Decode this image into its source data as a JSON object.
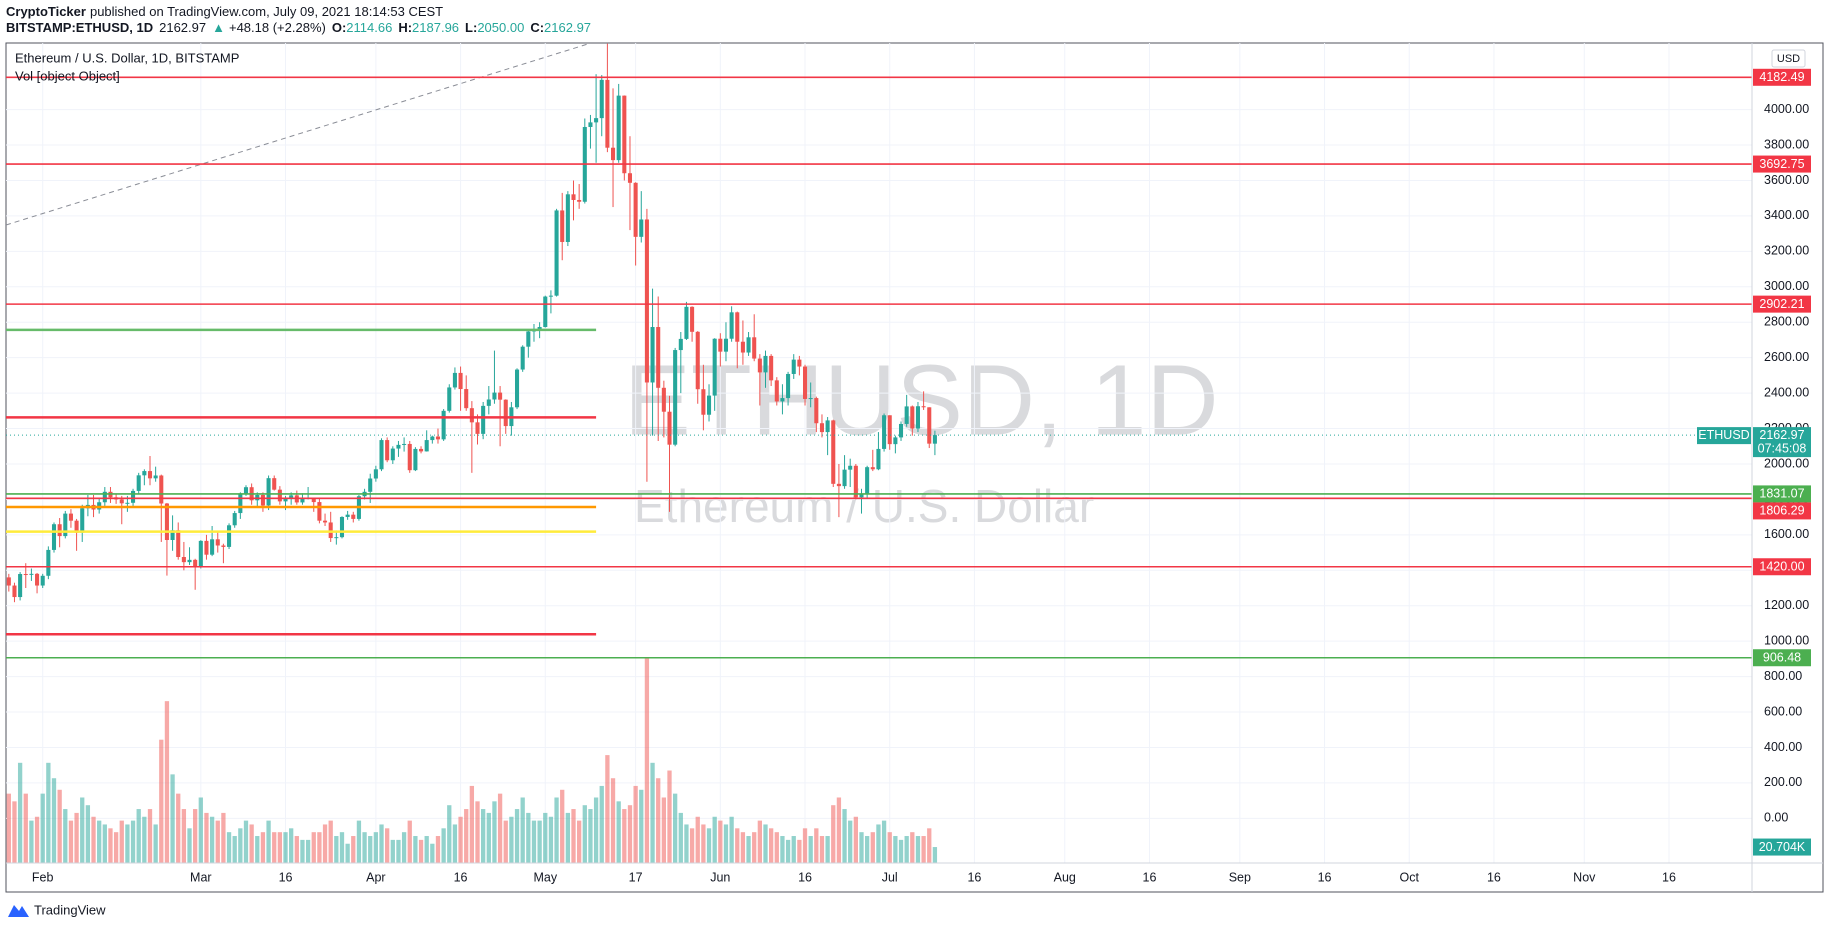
{
  "header": {
    "author": "CryptoTicker",
    "published": "published on TradingView.com, July 09, 2021 18:14:53 CEST",
    "symbol": "BITSTAMP:ETHUSD, 1D",
    "last": "2162.97",
    "arrow": "▲",
    "change": "+48.18 (+2.28%)",
    "o_label": "O:",
    "o": "2114.66",
    "h_label": "H:",
    "h": "2187.96",
    "l_label": "L:",
    "l": "2050.00",
    "c_label": "C:",
    "c": "2162.97"
  },
  "footer": {
    "brand": "TradingView"
  },
  "chart_data": {
    "type": "candlestick",
    "title": "Ethereum / U.S. Dollar, 1D, BITSTAMP",
    "indicator": "Vol [object Object]",
    "watermark": "ETHUSD, 1D",
    "watermark_subtitle": "Ethereum / U.S. Dollar",
    "currency": "USD",
    "symbol_label": "ETHUSD",
    "countdown": "07:45:08",
    "volume_last_label": "20.704K",
    "colors": {
      "up": "#26a69a",
      "down": "#ef5350"
    },
    "grid": true,
    "xlim": [
      -0.5,
      308.7
    ],
    "ylim": [
      -252,
      4376
    ],
    "volume_ylim": [
      0,
      266000
    ],
    "xticks": [
      {
        "value": 6,
        "label": "Feb"
      },
      {
        "value": 34,
        "label": "Mar"
      },
      {
        "value": 49,
        "label": "16"
      },
      {
        "value": 65,
        "label": "Apr"
      },
      {
        "value": 80,
        "label": "16"
      },
      {
        "value": 95,
        "label": "May"
      },
      {
        "value": 111,
        "label": "17"
      },
      {
        "value": 126,
        "label": "Jun"
      },
      {
        "value": 141,
        "label": "16"
      },
      {
        "value": 156,
        "label": "Jul"
      },
      {
        "value": 171,
        "label": "16"
      },
      {
        "value": 187,
        "label": "Aug"
      },
      {
        "value": 202,
        "label": "16"
      },
      {
        "value": 218,
        "label": "Sep"
      },
      {
        "value": 233,
        "label": "16"
      },
      {
        "value": 248,
        "label": "Oct"
      },
      {
        "value": 263,
        "label": "16"
      },
      {
        "value": 279,
        "label": "Nov"
      },
      {
        "value": 294,
        "label": "16"
      }
    ],
    "yticks": [
      {
        "value": 0,
        "label": "0.00"
      },
      {
        "value": 200,
        "label": "200.00"
      },
      {
        "value": 400,
        "label": "400.00"
      },
      {
        "value": 600,
        "label": "600.00"
      },
      {
        "value": 800,
        "label": "800.00"
      },
      {
        "value": 1000,
        "label": "1000.00"
      },
      {
        "value": 1200,
        "label": "1200.00"
      },
      {
        "value": 1400,
        "label": "1400.00"
      },
      {
        "value": 1600,
        "label": "1600.00"
      },
      {
        "value": 1800,
        "label": "1800.00"
      },
      {
        "value": 2000,
        "label": "2000.00"
      },
      {
        "value": 2200,
        "label": "2200.00"
      },
      {
        "value": 2400,
        "label": "2400.00"
      },
      {
        "value": 2600,
        "label": "2600.00"
      },
      {
        "value": 2800,
        "label": "2800.00"
      },
      {
        "value": 3000,
        "label": "3000.00"
      },
      {
        "value": 3200,
        "label": "3200.00"
      },
      {
        "value": 3400,
        "label": "3400.00"
      },
      {
        "value": 3600,
        "label": "3600.00"
      },
      {
        "value": 3800,
        "label": "3800.00"
      },
      {
        "value": 4000,
        "label": "4000.00"
      }
    ],
    "open": [
      1360,
      1314,
      1249,
      1379,
      1378,
      1380,
      1314,
      1369,
      1515,
      1660,
      1593,
      1720,
      1680,
      1612,
      1750,
      1769,
      1743,
      1784,
      1843,
      1812,
      1800,
      1778,
      1781,
      1848,
      1936,
      1960,
      1919,
      1935,
      1777,
      1571,
      1626,
      1475,
      1446,
      1459,
      1416,
      1566,
      1488,
      1575,
      1540,
      1532,
      1654,
      1723,
      1834,
      1869,
      1795,
      1825,
      1766,
      1920,
      1855,
      1789,
      1805,
      1823,
      1783,
      1808,
      1809,
      1785,
      1680,
      1670,
      1582,
      1587,
      1701,
      1714,
      1690,
      1818,
      1843,
      1918,
      1970,
      2135,
      2021,
      2087,
      2108,
      2113,
      1965,
      2085,
      2071,
      2135,
      2155,
      2139,
      2300,
      2432,
      2514,
      2423,
      2315,
      2235,
      2170,
      2328,
      2364,
      2403,
      2363,
      2214,
      2320,
      2533,
      2662,
      2748,
      2757,
      2773,
      2945,
      2950,
      3431,
      3253,
      3522,
      3490,
      3480,
      3902,
      3928,
      3952,
      4168,
      3785,
      3715,
      4079,
      3641,
      3587,
      3282,
      3380,
      2460,
      2773,
      2430,
      2295,
      2109,
      2643,
      2706,
      2887,
      2746,
      2422,
      2278,
      2386,
      2707,
      2634,
      2707,
      2856,
      2690,
      2629,
      2715,
      2595,
      2517,
      2610,
      2472,
      2353,
      2372,
      2508,
      2589,
      2550,
      2367,
      2372,
      2230,
      2180,
      2246,
      1888,
      1875,
      1968,
      1990,
      1812,
      1830,
      1982,
      1970,
      2085,
      2275,
      2112,
      2150,
      2226,
      2325,
      2200,
      2326,
      2320,
      2114.66
    ],
    "high": [
      1380,
      1330,
      1390,
      1440,
      1410,
      1385,
      1380,
      1535,
      1670,
      1695,
      1735,
      1745,
      1690,
      1770,
      1825,
      1825,
      1805,
      1870,
      1870,
      1830,
      1820,
      1820,
      1860,
      1950,
      1970,
      2045,
      1985,
      1940,
      1780,
      1710,
      1670,
      1560,
      1530,
      1465,
      1570,
      1600,
      1650,
      1620,
      1550,
      1665,
      1735,
      1840,
      1880,
      1890,
      1840,
      1840,
      1935,
      1935,
      1875,
      1820,
      1840,
      1850,
      1835,
      1870,
      1810,
      1810,
      1720,
      1730,
      1625,
      1705,
      1735,
      1730,
      1825,
      1860,
      1945,
      1990,
      2145,
      2150,
      2100,
      2130,
      2150,
      2130,
      2095,
      2100,
      2190,
      2160,
      2200,
      2310,
      2450,
      2545,
      2550,
      2500,
      2355,
      2280,
      2350,
      2440,
      2640,
      2440,
      2365,
      2350,
      2540,
      2670,
      2760,
      2790,
      2800,
      2950,
      2980,
      3440,
      3530,
      3540,
      3600,
      3580,
      3950,
      3970,
      4200,
      4195,
      4372,
      4120,
      4145,
      4080,
      3850,
      3590,
      3540,
      3440,
      2990,
      2945,
      2470,
      2385,
      2655,
      2745,
      2915,
      2890,
      2750,
      2560,
      2450,
      2710,
      2738,
      2800,
      2890,
      2860,
      2810,
      2745,
      2845,
      2620,
      2640,
      2620,
      2490,
      2450,
      2520,
      2620,
      2610,
      2560,
      2460,
      2380,
      2280,
      2265,
      2250,
      2000,
      2050,
      2030,
      2000,
      1860,
      1990,
      2080,
      2180,
      2285,
      2275,
      2160,
      2240,
      2390,
      2330,
      2350,
      2410,
      2320,
      2187.96
    ],
    "low": [
      1280,
      1220,
      1230,
      1300,
      1340,
      1270,
      1300,
      1350,
      1500,
      1530,
      1580,
      1640,
      1510,
      1560,
      1705,
      1700,
      1720,
      1760,
      1780,
      1775,
      1660,
      1730,
      1760,
      1830,
      1880,
      1880,
      1900,
      1560,
      1370,
      1510,
      1460,
      1400,
      1430,
      1290,
      1410,
      1460,
      1480,
      1500,
      1440,
      1520,
      1640,
      1690,
      1820,
      1770,
      1760,
      1730,
      1740,
      1850,
      1770,
      1740,
      1770,
      1770,
      1770,
      1800,
      1730,
      1665,
      1650,
      1560,
      1545,
      1580,
      1685,
      1670,
      1680,
      1800,
      1780,
      1900,
      1960,
      2010,
      2000,
      2040,
      2070,
      1950,
      1960,
      2060,
      2070,
      2115,
      2115,
      2130,
      2290,
      2420,
      2300,
      2300,
      1950,
      2110,
      2140,
      2280,
      2340,
      2100,
      2170,
      2160,
      2310,
      2520,
      2600,
      2690,
      2710,
      2770,
      2850,
      2945,
      3150,
      3230,
      3375,
      3440,
      3470,
      3780,
      3700,
      3850,
      3760,
      3450,
      3700,
      3600,
      3320,
      3120,
      3250,
      1900,
      2160,
      2130,
      2150,
      1730,
      2100,
      2400,
      2700,
      2690,
      2340,
      2190,
      2240,
      2300,
      2550,
      2580,
      2690,
      2540,
      2560,
      2610,
      2580,
      2330,
      2430,
      2440,
      2330,
      2280,
      2330,
      2480,
      2500,
      2330,
      2320,
      2180,
      2150,
      2050,
      1870,
      1700,
      1860,
      1870,
      1800,
      1720,
      1810,
      1960,
      1965,
      2070,
      2080,
      2060,
      2130,
      2210,
      2160,
      2180,
      2305,
      2090,
      2050
    ],
    "close": [
      1314,
      1249,
      1379,
      1378,
      1380,
      1314,
      1369,
      1515,
      1660,
      1593,
      1720,
      1680,
      1612,
      1750,
      1769,
      1743,
      1784,
      1843,
      1812,
      1800,
      1778,
      1781,
      1848,
      1936,
      1960,
      1919,
      1935,
      1777,
      1571,
      1626,
      1475,
      1446,
      1459,
      1416,
      1566,
      1488,
      1575,
      1540,
      1532,
      1654,
      1723,
      1834,
      1869,
      1795,
      1825,
      1766,
      1920,
      1855,
      1789,
      1805,
      1823,
      1783,
      1808,
      1809,
      1785,
      1680,
      1670,
      1582,
      1587,
      1701,
      1714,
      1690,
      1818,
      1843,
      1918,
      1970,
      2135,
      2021,
      2087,
      2108,
      2113,
      1965,
      2085,
      2071,
      2135,
      2155,
      2139,
      2300,
      2432,
      2514,
      2423,
      2315,
      2235,
      2170,
      2328,
      2364,
      2403,
      2363,
      2214,
      2320,
      2533,
      2662,
      2748,
      2757,
      2773,
      2945,
      2950,
      3431,
      3253,
      3522,
      3490,
      3480,
      3902,
      3928,
      3952,
      4168,
      3785,
      3715,
      4079,
      3641,
      3587,
      3282,
      3380,
      2460,
      2773,
      2430,
      2295,
      2109,
      2643,
      2706,
      2887,
      2746,
      2422,
      2278,
      2386,
      2707,
      2634,
      2707,
      2856,
      2690,
      2629,
      2715,
      2595,
      2517,
      2610,
      2472,
      2353,
      2372,
      2508,
      2589,
      2550,
      2367,
      2372,
      2230,
      2180,
      2246,
      1888,
      1875,
      1968,
      1990,
      1812,
      1830,
      1982,
      1970,
      2085,
      2275,
      2112,
      2150,
      2226,
      2325,
      2200,
      2326,
      2320,
      2114.79,
      2162.97
    ],
    "volume": [
      90000,
      80000,
      130000,
      90000,
      55000,
      60000,
      90000,
      130000,
      110000,
      95000,
      70000,
      55000,
      65000,
      85000,
      75000,
      60000,
      55000,
      50000,
      45000,
      40000,
      55000,
      50000,
      55000,
      70000,
      60000,
      70000,
      50000,
      160000,
      210000,
      115000,
      90000,
      70000,
      45000,
      70000,
      85000,
      65000,
      60000,
      55000,
      65000,
      40000,
      35000,
      45000,
      55000,
      50000,
      35000,
      40000,
      55000,
      40000,
      40000,
      40000,
      45000,
      35000,
      30000,
      30000,
      40000,
      40000,
      50000,
      55000,
      35000,
      40000,
      25000,
      35000,
      55000,
      40000,
      35000,
      40000,
      50000,
      45000,
      30000,
      30000,
      40000,
      55000,
      35000,
      30000,
      35000,
      25000,
      35000,
      45000,
      75000,
      50000,
      60000,
      70000,
      100000,
      80000,
      70000,
      65000,
      80000,
      90000,
      55000,
      60000,
      70000,
      85000,
      65000,
      55000,
      55000,
      65000,
      60000,
      85000,
      95000,
      65000,
      70000,
      55000,
      75000,
      70000,
      85000,
      100000,
      140000,
      110000,
      80000,
      70000,
      75000,
      100000,
      95000,
      266000,
      130000,
      110000,
      85000,
      120000,
      90000,
      65000,
      50000,
      45000,
      60000,
      50000,
      45000,
      60000,
      55000,
      50000,
      60000,
      45000,
      40000,
      35000,
      40000,
      55000,
      50000,
      45000,
      40000,
      35000,
      30000,
      35000,
      30000,
      45000,
      35000,
      45000,
      35000,
      35000,
      75000,
      85000,
      70000,
      55000,
      60000,
      40000,
      35000,
      40000,
      50000,
      55000,
      40000,
      35000,
      30000,
      35000,
      40000,
      35000,
      35000,
      45000,
      20704
    ],
    "levels": [
      {
        "value": 4182.49,
        "color": "#f23645"
      },
      {
        "value": 3692.75,
        "color": "#f23645"
      },
      {
        "value": 2902.21,
        "color": "#f23645"
      },
      {
        "value": 1831.07,
        "color": "#4caf50"
      },
      {
        "value": 1806.29,
        "color": "#f23645"
      },
      {
        "value": 1420,
        "label": "1420.00",
        "color": "#f23645"
      },
      {
        "value": 906.48,
        "color": "#4caf50"
      }
    ],
    "segments": [
      {
        "value": 2757,
        "end": 104,
        "color": "#66bb6a"
      },
      {
        "value": 2263,
        "end": 104,
        "color": "#f23645"
      },
      {
        "value": 1757,
        "end": 104,
        "color": "#ff9800"
      },
      {
        "value": 1618,
        "end": 104,
        "color": "#ffeb3b"
      },
      {
        "value": 1039,
        "end": 104,
        "color": "#f23645"
      }
    ],
    "trendline": {
      "from": [
        -0.5,
        3349
      ],
      "to": [
        103,
        4375
      ],
      "color": "#8a8d96"
    }
  }
}
